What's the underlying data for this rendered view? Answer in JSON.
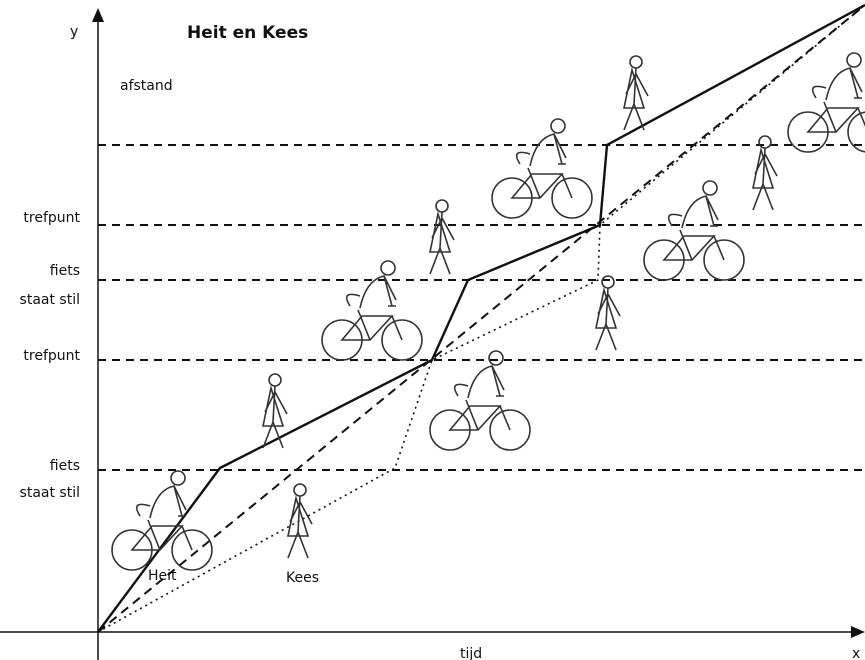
{
  "title": "Heit en Kees",
  "axes": {
    "y": "y",
    "x": "x",
    "y_label": "afstand",
    "x_label": "tijd"
  },
  "levels": [
    {
      "lines": [
        "trefpunt"
      ]
    },
    {
      "lines": [
        "fiets",
        "staat stil"
      ]
    },
    {
      "lines": [
        "trefpunt"
      ]
    },
    {
      "lines": [
        "fiets",
        "staat stil"
      ]
    }
  ],
  "people": [
    "Heit",
    "Kees"
  ]
}
